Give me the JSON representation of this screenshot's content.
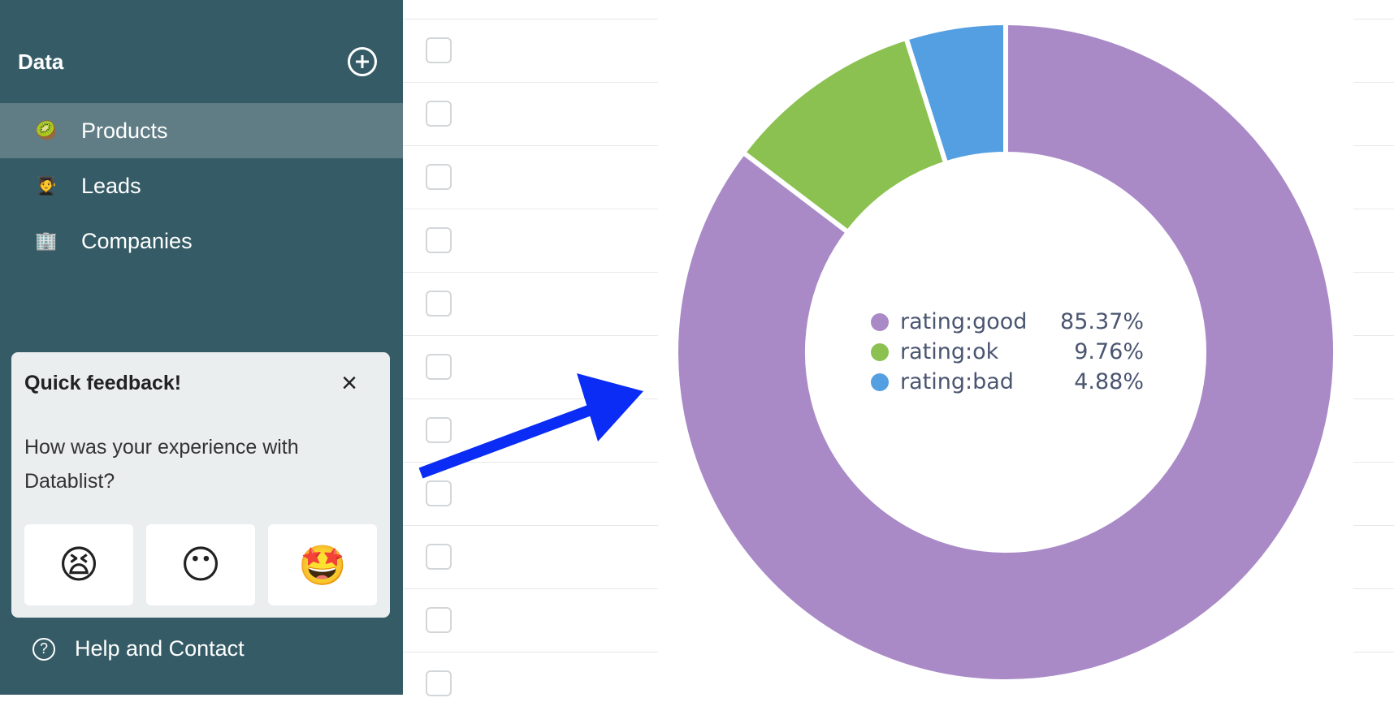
{
  "sidebar": {
    "title": "Data",
    "items": [
      {
        "emoji": "🥝",
        "label": "Products",
        "active": true
      },
      {
        "emoji": "🧑‍🎓",
        "label": "Leads",
        "active": false
      },
      {
        "emoji": "🏢",
        "label": "Companies",
        "active": false
      }
    ],
    "help_label": "Help and Contact"
  },
  "feedback": {
    "title": "Quick feedback!",
    "question": "How was your experience with Datablist?",
    "emojis": [
      "😫",
      "😶",
      "🤩"
    ]
  },
  "chart_data": {
    "type": "pie",
    "series": [
      {
        "name": "rating:good",
        "value": 85.37,
        "display": "85.37%",
        "color": "#a98ac7"
      },
      {
        "name": "rating:ok",
        "value": 9.76,
        "display": "9.76%",
        "color": "#8bc150"
      },
      {
        "name": "rating:bad",
        "value": 4.88,
        "display": "4.88%",
        "color": "#539fe2"
      }
    ],
    "legend_position": "center"
  },
  "colors": {
    "sidebar_bg": "#355c66",
    "arrow": "#0a2cf5"
  }
}
